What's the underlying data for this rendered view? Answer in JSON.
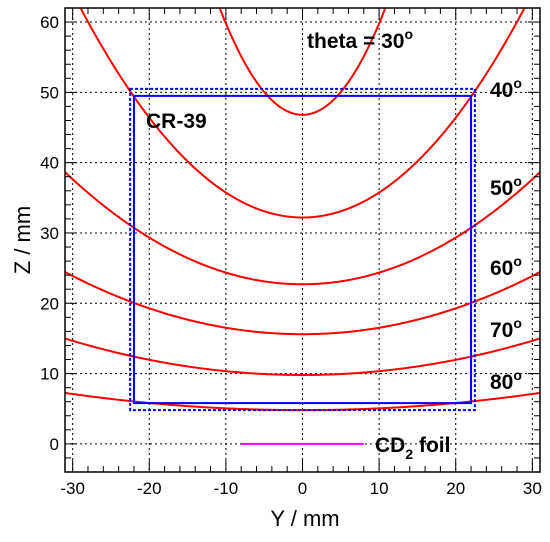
{
  "chart_data": {
    "type": "line",
    "xlabel": "Y / mm",
    "ylabel": "Z / mm",
    "xlim": [
      -31,
      31
    ],
    "ylim": [
      -4,
      62
    ],
    "xticks": [
      -30,
      -20,
      -10,
      0,
      10,
      20,
      30
    ],
    "yticks": [
      0,
      10,
      20,
      30,
      40,
      50,
      60
    ],
    "grid": "dotted",
    "series": [
      {
        "theta": 30,
        "min": 46.8,
        "curvature": 0.13,
        "color": "#ff0000"
      },
      {
        "theta": 40,
        "min": 32.2,
        "curvature": 0.0355,
        "color": "#ff0000"
      },
      {
        "theta": 50,
        "min": 22.7,
        "curvature": 0.0166,
        "color": "#ff0000"
      },
      {
        "theta": 60,
        "min": 15.6,
        "curvature": 0.0092,
        "color": "#ff0000"
      },
      {
        "theta": 70,
        "min": 9.8,
        "curvature": 0.0054,
        "color": "#ff0000"
      },
      {
        "theta": 80,
        "min": 4.8,
        "curvature": 0.00255,
        "color": "#ff0000"
      }
    ],
    "series_labels": [
      {
        "text": "theta = 30",
        "sup": "o"
      },
      {
        "text": "40",
        "sup": "o"
      },
      {
        "text": "50",
        "sup": "o"
      },
      {
        "text": "60",
        "sup": "o"
      },
      {
        "text": "70",
        "sup": "o"
      },
      {
        "text": "80",
        "sup": "o"
      }
    ],
    "detector": {
      "label": "CR-39",
      "solid_box": {
        "y": [
          -22,
          22
        ],
        "z": [
          5.8,
          49.5
        ],
        "color": "#0000ff"
      },
      "dotted_box": {
        "y": [
          -22.5,
          22.5
        ],
        "z": [
          4.8,
          50.5
        ],
        "color": "#0000ff"
      }
    },
    "foil": {
      "label_main": "CD",
      "label_sub": "2",
      "label_tail": " foil",
      "y": [
        -8,
        8
      ],
      "z": 0,
      "color": "#ff00ff"
    }
  }
}
